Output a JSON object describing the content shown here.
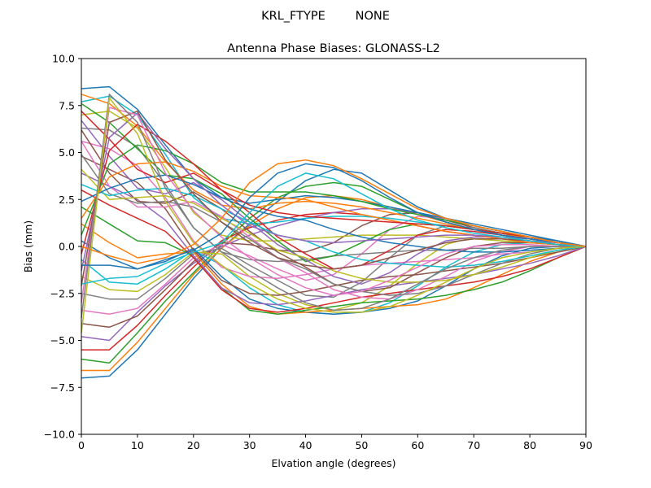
{
  "suptitle": "KRL_FTYPE        NONE",
  "chart_data": {
    "type": "line",
    "title": "Antenna Phase Biases: GLONASS-L2",
    "xlabel": "Elvation angle (degrees)",
    "ylabel": "Bias (mm)",
    "xlim": [
      0,
      90
    ],
    "ylim": [
      -10,
      10
    ],
    "xticks": [
      0,
      10,
      20,
      30,
      40,
      50,
      60,
      70,
      80,
      90
    ],
    "yticks": [
      -10.0,
      -7.5,
      -5.0,
      -2.5,
      0.0,
      2.5,
      5.0,
      7.5,
      10.0
    ],
    "x": [
      0,
      5,
      10,
      15,
      20,
      25,
      30,
      35,
      40,
      45,
      50,
      55,
      60,
      65,
      70,
      75,
      80,
      85,
      90
    ],
    "grid": false,
    "legend": "none",
    "colors": [
      "#1f77b4",
      "#ff7f0e",
      "#2ca02c",
      "#d62728",
      "#9467bd",
      "#8c564b",
      "#e377c2",
      "#7f7f7f",
      "#bcbd22",
      "#17becf"
    ],
    "series": [
      {
        "values": [
          -7.0,
          -6.9,
          -5.5,
          -3.6,
          -1.7,
          -0.1,
          1.2,
          2.4,
          3.5,
          4.1,
          3.9,
          3.0,
          2.1,
          1.5,
          1.1,
          0.8,
          0.5,
          0.3,
          0.0
        ]
      },
      {
        "values": [
          -6.6,
          -6.6,
          -5.1,
          -3.3,
          -1.5,
          -0.1,
          1.1,
          2.0,
          2.6,
          2.7,
          2.5,
          2.1,
          1.7,
          1.3,
          0.9,
          0.6,
          0.4,
          0.2,
          0.0
        ]
      },
      {
        "values": [
          -6.0,
          -6.2,
          -4.6,
          -2.9,
          -1.4,
          0.1,
          1.5,
          2.6,
          3.2,
          3.4,
          3.2,
          2.5,
          1.8,
          1.3,
          0.9,
          0.6,
          0.4,
          0.2,
          0.0
        ]
      },
      {
        "values": [
          -5.5,
          -5.5,
          -4.2,
          -2.6,
          -1.1,
          0.3,
          1.0,
          1.4,
          1.7,
          1.8,
          1.7,
          1.4,
          1.1,
          0.8,
          0.6,
          0.4,
          0.3,
          0.1,
          0.0
        ]
      },
      {
        "values": [
          -4.8,
          -5.0,
          -3.5,
          -2.1,
          -0.9,
          0.0,
          0.6,
          1.1,
          1.5,
          1.8,
          2.0,
          2.0,
          1.8,
          1.4,
          1.0,
          0.7,
          0.4,
          0.2,
          0.0
        ]
      },
      {
        "values": [
          -4.1,
          -4.3,
          -3.7,
          -2.3,
          -0.8,
          0.2,
          0.1,
          -0.2,
          -0.3,
          0.2,
          1.1,
          1.7,
          1.8,
          1.4,
          1.0,
          0.7,
          0.4,
          0.2,
          0.0
        ]
      },
      {
        "values": [
          -3.4,
          -3.6,
          -3.3,
          -2.0,
          -0.6,
          0.1,
          -0.5,
          -1.2,
          -1.8,
          -1.5,
          -0.4,
          0.9,
          1.6,
          1.5,
          1.1,
          0.8,
          0.5,
          0.2,
          0.0
        ]
      },
      {
        "values": [
          -2.5,
          -2.8,
          -2.8,
          -1.7,
          -0.4,
          -0.1,
          -1.0,
          -1.8,
          -2.6,
          -2.7,
          -1.9,
          -0.6,
          0.6,
          1.1,
          1.0,
          0.7,
          0.5,
          0.2,
          0.0
        ]
      },
      {
        "values": [
          -1.6,
          -2.3,
          -2.4,
          -1.5,
          -0.3,
          -0.4,
          -1.6,
          -2.5,
          -3.1,
          -3.4,
          -3.0,
          -2.1,
          -0.9,
          0.1,
          0.5,
          0.5,
          0.4,
          0.2,
          0.0
        ]
      },
      {
        "values": [
          -0.7,
          -1.9,
          -2.0,
          -1.2,
          -0.2,
          -1.0,
          -2.2,
          -3.1,
          -3.5,
          -3.6,
          -3.5,
          -3.0,
          -2.1,
          -1.1,
          -0.3,
          0.1,
          0.2,
          0.1,
          0.0
        ]
      },
      {
        "values": [
          0.3,
          -0.6,
          -1.2,
          -0.8,
          -0.1,
          -1.6,
          -2.8,
          -3.3,
          -3.5,
          -3.6,
          -3.5,
          -3.3,
          -2.9,
          -2.1,
          -1.2,
          -0.5,
          -0.1,
          0.0,
          0.0
        ]
      },
      {
        "values": [
          1.2,
          0.2,
          -0.6,
          -0.4,
          -0.3,
          -2.0,
          -3.2,
          -3.6,
          -3.5,
          -3.4,
          -3.3,
          -3.2,
          -3.1,
          -2.8,
          -2.2,
          -1.5,
          -0.8,
          -0.3,
          0.0
        ]
      },
      {
        "values": [
          2.1,
          1.2,
          0.3,
          0.2,
          -0.5,
          -2.2,
          -3.4,
          -3.6,
          -3.4,
          -3.2,
          -3.0,
          -2.9,
          -2.8,
          -2.6,
          -2.3,
          -1.9,
          -1.3,
          -0.6,
          0.0
        ]
      },
      {
        "values": [
          3.0,
          2.2,
          1.5,
          0.8,
          -0.6,
          -2.3,
          -3.3,
          -3.5,
          -3.3,
          -3.0,
          -2.7,
          -2.5,
          -2.3,
          -2.1,
          -1.9,
          -1.6,
          -1.2,
          -0.6,
          0.0
        ]
      },
      {
        "values": [
          3.9,
          3.2,
          2.5,
          1.4,
          -0.5,
          -2.2,
          -3.0,
          -3.1,
          -2.9,
          -2.6,
          -2.3,
          -2.1,
          -1.9,
          -1.7,
          -1.5,
          -1.2,
          -0.9,
          -0.5,
          0.0
        ]
      },
      {
        "values": [
          4.8,
          4.1,
          3.4,
          2.0,
          -0.2,
          -1.8,
          -2.5,
          -2.6,
          -2.4,
          -2.1,
          -1.8,
          -1.6,
          -1.5,
          -1.3,
          -1.1,
          -0.9,
          -0.6,
          -0.3,
          0.0
        ]
      },
      {
        "values": [
          5.6,
          5.2,
          4.3,
          2.6,
          0.3,
          -1.1,
          -1.6,
          -1.7,
          -1.5,
          -1.2,
          -1.0,
          -0.9,
          -0.8,
          -0.7,
          -0.6,
          -0.4,
          -0.3,
          -0.1,
          0.0
        ]
      },
      {
        "values": [
          6.3,
          6.2,
          5.3,
          3.3,
          1.0,
          -0.3,
          -0.7,
          -0.8,
          -0.7,
          -0.5,
          -0.4,
          -0.3,
          -0.2,
          -0.2,
          -0.1,
          -0.1,
          0.0,
          0.0,
          0.0
        ]
      },
      {
        "values": [
          7.0,
          7.2,
          6.3,
          4.2,
          1.8,
          0.6,
          0.3,
          0.3,
          0.4,
          0.5,
          0.6,
          0.6,
          0.6,
          0.5,
          0.4,
          0.3,
          0.2,
          0.1,
          0.0
        ]
      },
      {
        "values": [
          7.7,
          8.0,
          7.0,
          4.9,
          2.6,
          1.5,
          1.2,
          1.3,
          1.5,
          1.6,
          1.6,
          1.5,
          1.3,
          1.1,
          0.9,
          0.6,
          0.4,
          0.2,
          0.0
        ]
      },
      {
        "values": [
          8.4,
          8.5,
          7.3,
          5.4,
          3.6,
          2.6,
          2.3,
          2.5,
          2.7,
          2.6,
          2.4,
          2.1,
          1.8,
          1.5,
          1.2,
          0.9,
          0.6,
          0.3,
          0.0
        ]
      },
      {
        "values": [
          8.1,
          7.6,
          6.4,
          4.5,
          3.0,
          2.2,
          2.0,
          2.3,
          2.4,
          2.3,
          2.1,
          1.8,
          1.5,
          1.2,
          0.9,
          0.7,
          0.4,
          0.2,
          0.0
        ]
      },
      {
        "values": [
          7.6,
          6.6,
          5.2,
          3.8,
          3.6,
          2.8,
          1.5,
          0.3,
          -0.8,
          -0.5,
          0.2,
          0.9,
          1.2,
          1.1,
          0.9,
          0.7,
          0.5,
          0.2,
          0.0
        ]
      },
      {
        "values": [
          7.2,
          5.7,
          4.1,
          3.4,
          3.9,
          3.0,
          1.8,
          0.5,
          -0.4,
          -1.2,
          -1.0,
          -0.2,
          0.6,
          0.9,
          0.8,
          0.6,
          0.4,
          0.2,
          0.0
        ]
      },
      {
        "values": [
          6.7,
          4.8,
          3.1,
          2.8,
          3.4,
          2.5,
          1.3,
          0.1,
          -0.7,
          -1.6,
          -2.0,
          -1.4,
          -0.4,
          0.3,
          0.5,
          0.5,
          0.3,
          0.2,
          0.0
        ]
      },
      {
        "values": [
          6.2,
          3.9,
          2.4,
          2.3,
          2.9,
          2.0,
          0.8,
          -0.3,
          -1.1,
          -2.0,
          -2.4,
          -2.2,
          -1.4,
          -0.6,
          0.0,
          0.2,
          0.2,
          0.1,
          0.0
        ]
      },
      {
        "values": [
          5.6,
          3.2,
          2.1,
          2.1,
          2.4,
          1.6,
          0.5,
          -0.6,
          -1.4,
          -2.3,
          -2.7,
          -2.8,
          -2.3,
          -1.6,
          -0.8,
          -0.3,
          0.0,
          0.0,
          0.0
        ]
      },
      {
        "values": [
          4.9,
          2.8,
          2.3,
          2.4,
          2.1,
          1.3,
          0.4,
          -0.6,
          -1.2,
          -2.0,
          -2.4,
          -2.6,
          -2.5,
          -2.1,
          -1.5,
          -0.9,
          -0.4,
          -0.1,
          0.0
        ]
      },
      {
        "values": [
          4.1,
          2.5,
          2.6,
          2.7,
          2.3,
          1.5,
          0.7,
          -0.2,
          -0.6,
          -1.3,
          -1.7,
          -1.9,
          -1.9,
          -1.8,
          -1.5,
          -1.1,
          -0.6,
          -0.2,
          0.0
        ]
      },
      {
        "values": [
          3.3,
          2.7,
          3.0,
          3.1,
          2.7,
          2.0,
          1.3,
          0.6,
          0.3,
          -0.3,
          -0.7,
          -0.9,
          -1.0,
          -1.1,
          -1.0,
          -0.8,
          -0.5,
          -0.2,
          0.0
        ]
      },
      {
        "values": [
          2.4,
          3.1,
          3.6,
          3.8,
          3.3,
          2.6,
          2.0,
          1.6,
          1.4,
          0.9,
          0.5,
          0.2,
          0.0,
          -0.2,
          -0.3,
          -0.3,
          -0.2,
          -0.1,
          0.0
        ]
      },
      {
        "values": [
          1.5,
          3.7,
          4.4,
          4.5,
          4.0,
          3.2,
          2.7,
          2.6,
          2.5,
          2.1,
          1.7,
          1.4,
          1.1,
          0.8,
          0.6,
          0.4,
          0.2,
          0.1,
          0.0
        ]
      },
      {
        "values": [
          0.6,
          4.4,
          5.4,
          5.1,
          4.4,
          3.4,
          2.9,
          2.9,
          2.9,
          2.7,
          2.4,
          2.0,
          1.7,
          1.4,
          1.1,
          0.8,
          0.5,
          0.2,
          0.0
        ]
      },
      {
        "values": [
          -0.4,
          5.1,
          6.5,
          5.6,
          4.4,
          3.0,
          2.2,
          1.8,
          1.6,
          1.5,
          1.4,
          1.3,
          1.2,
          1.1,
          0.9,
          0.7,
          0.5,
          0.2,
          0.0
        ]
      },
      {
        "values": [
          -1.3,
          5.8,
          7.1,
          5.2,
          3.6,
          2.2,
          1.1,
          0.6,
          0.3,
          0.2,
          0.3,
          0.4,
          0.5,
          0.6,
          0.6,
          0.5,
          0.4,
          0.2,
          0.0
        ]
      },
      {
        "values": [
          -2.1,
          6.6,
          7.2,
          4.6,
          2.8,
          1.3,
          0.2,
          -0.6,
          -1.0,
          -1.2,
          -1.0,
          -0.6,
          -0.2,
          0.2,
          0.4,
          0.4,
          0.3,
          0.1,
          0.0
        ]
      },
      {
        "values": [
          -3.0,
          7.4,
          7.0,
          3.9,
          1.9,
          0.5,
          -0.6,
          -1.5,
          -2.2,
          -2.6,
          -2.4,
          -1.8,
          -1.1,
          -0.4,
          0.0,
          0.1,
          0.1,
          0.0,
          0.0
        ]
      },
      {
        "values": [
          -3.8,
          8.1,
          6.6,
          3.1,
          1.0,
          -0.3,
          -1.3,
          -2.2,
          -3.0,
          -3.4,
          -3.3,
          -2.8,
          -2.0,
          -1.2,
          -0.6,
          -0.2,
          0.0,
          0.0,
          0.0
        ]
      },
      {
        "values": [
          -4.6,
          7.9,
          6.0,
          2.4,
          0.2,
          -1.0,
          -2.0,
          -2.8,
          -3.3,
          -3.5,
          -3.5,
          -3.2,
          -2.6,
          -1.9,
          -1.2,
          -0.6,
          -0.3,
          -0.1,
          0.0
        ]
      },
      {
        "values": [
          -2.0,
          -1.7,
          -1.6,
          -0.9,
          -0.3,
          0.2,
          1.8,
          3.2,
          3.9,
          3.6,
          2.8,
          2.0,
          1.4,
          1.0,
          0.7,
          0.5,
          0.3,
          0.1,
          0.0
        ]
      },
      {
        "values": [
          -1.0,
          -1.0,
          -1.2,
          -0.7,
          -0.2,
          0.7,
          2.6,
          3.9,
          4.4,
          4.2,
          3.5,
          2.6,
          1.8,
          1.3,
          0.9,
          0.6,
          0.4,
          0.2,
          0.0
        ]
      },
      {
        "values": [
          0.0,
          -0.5,
          -0.9,
          -0.6,
          0.1,
          1.5,
          3.4,
          4.4,
          4.6,
          4.3,
          3.6,
          2.8,
          2.0,
          1.5,
          1.1,
          0.8,
          0.5,
          0.2,
          0.0
        ]
      }
    ]
  }
}
